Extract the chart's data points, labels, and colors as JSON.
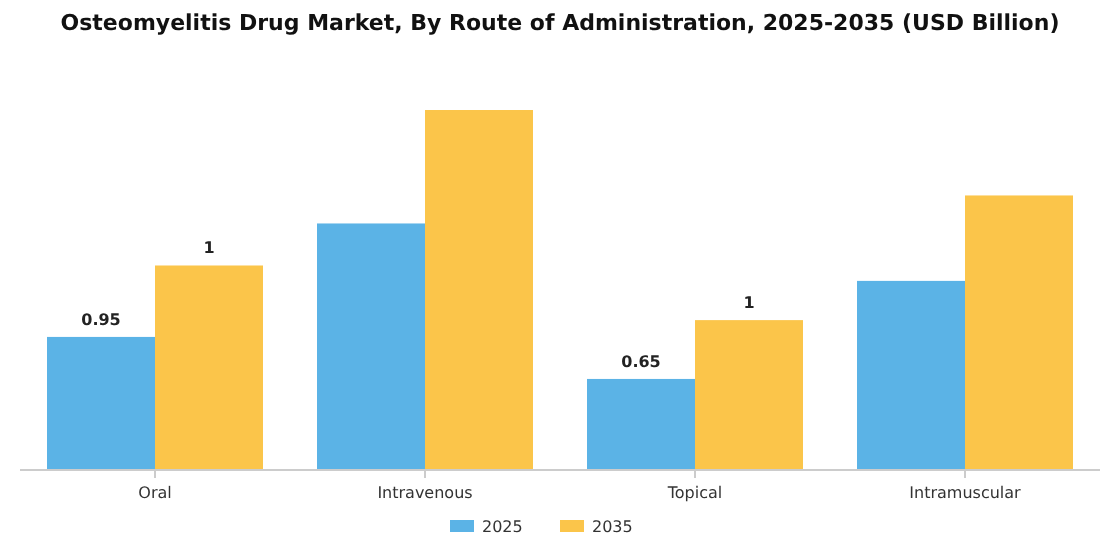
{
  "chart_data": {
    "type": "bar",
    "title": "Osteomyelitis Drug Market, By Route of Administration, 2025-2035 (USD Billion)",
    "categories": [
      "Oral",
      "Intravenous",
      "Topical",
      "Intramuscular"
    ],
    "legend": "bottom",
    "series": [
      {
        "name": "2025",
        "color": "#5bb3e6",
        "values": [
          0.95,
          1.76,
          0.65,
          1.35
        ],
        "value_labels": [
          "0.95",
          null,
          "0.65",
          null
        ]
      },
      {
        "name": "2035",
        "color": "#fbc54a",
        "values": [
          1.46,
          2.57,
          1.07,
          1.96
        ],
        "value_labels": [
          "1",
          null,
          "1",
          null
        ]
      }
    ]
  }
}
